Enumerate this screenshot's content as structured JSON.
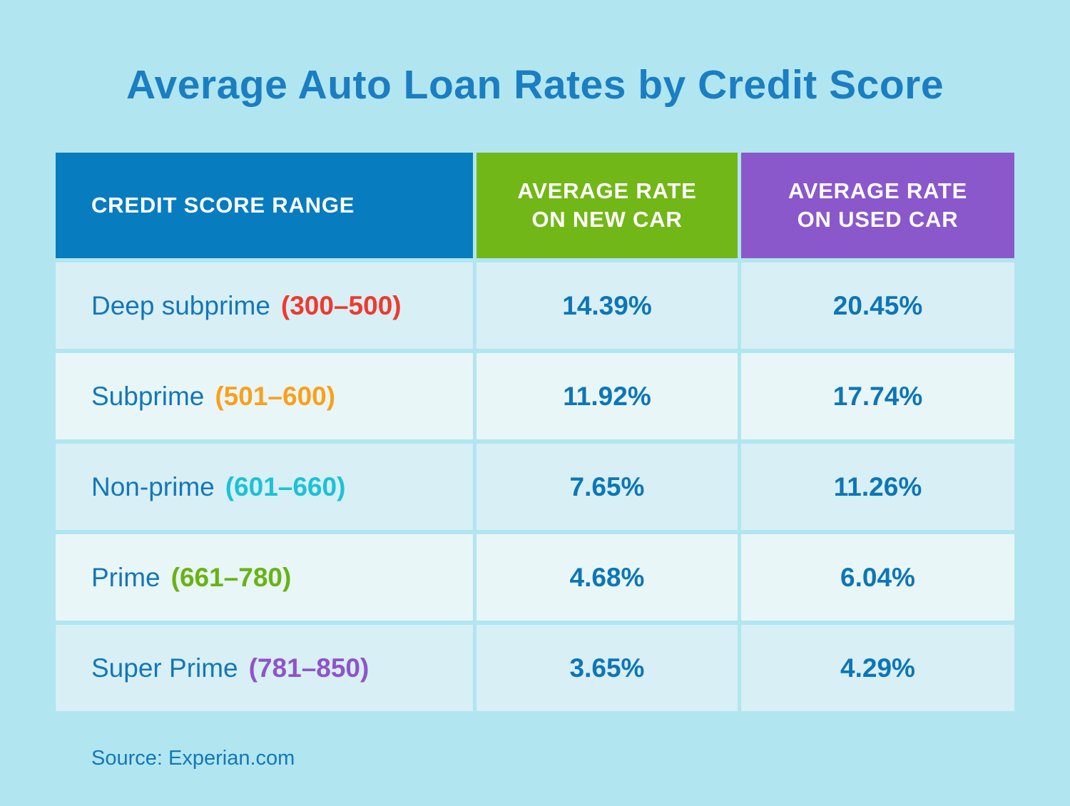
{
  "title": "Average Auto Loan Rates by Credit Score",
  "source": "Source: Experian.com",
  "colors": {
    "background": "#b1e6f0",
    "title_text": "#1b7ec2",
    "header_text": "#ffffff",
    "header_col1_bg": "#077cbf",
    "header_col2_bg": "#71b717",
    "header_col3_bg": "#8a58ca",
    "row_odd_bg": "#d8eff6",
    "row_even_bg": "#e9f6f8",
    "tier_text": "#1377b9",
    "value_text": "#0d76b6"
  },
  "table": {
    "headers": [
      {
        "label": "CREDIT SCORE RANGE",
        "bg": "#077cbf"
      },
      {
        "label": "AVERAGE RATE\nON NEW CAR",
        "bg": "#71b717"
      },
      {
        "label": "AVERAGE RATE\nON USED CAR",
        "bg": "#8a58ca"
      }
    ],
    "rows": [
      {
        "tier": "Deep subprime",
        "range": "(300–500)",
        "range_color": "#ee3a2d",
        "new_rate": "14.39%",
        "used_rate": "20.45%"
      },
      {
        "tier": "Subprime",
        "range": "(501–600)",
        "range_color": "#f9a01b",
        "new_rate": "11.92%",
        "used_rate": "17.74%"
      },
      {
        "tier": "Non-prime",
        "range": "(601–660)",
        "range_color": "#1cc2d7",
        "new_rate": "7.65%",
        "used_rate": "11.26%"
      },
      {
        "tier": "Prime",
        "range": "(661–780)",
        "range_color": "#68b313",
        "new_rate": "4.68%",
        "used_rate": "6.04%"
      },
      {
        "tier": "Super Prime",
        "range": "(781–850)",
        "range_color": "#8e54c8",
        "new_rate": "3.65%",
        "used_rate": "4.29%"
      }
    ]
  },
  "chart_data": {
    "type": "table",
    "title": "Average Auto Loan Rates by Credit Score",
    "columns": [
      "Credit Score Range",
      "Average Rate on New Car",
      "Average Rate on Used Car"
    ],
    "rows": [
      [
        "Deep subprime (300–500)",
        "14.39%",
        "20.45%"
      ],
      [
        "Subprime (501–600)",
        "11.92%",
        "17.74%"
      ],
      [
        "Non-prime (601–660)",
        "7.65%",
        "11.26%"
      ],
      [
        "Prime (661–780)",
        "4.68%",
        "6.04%"
      ],
      [
        "Super Prime (781–850)",
        "3.65%",
        "4.29%"
      ]
    ],
    "source": "Experian.com"
  }
}
